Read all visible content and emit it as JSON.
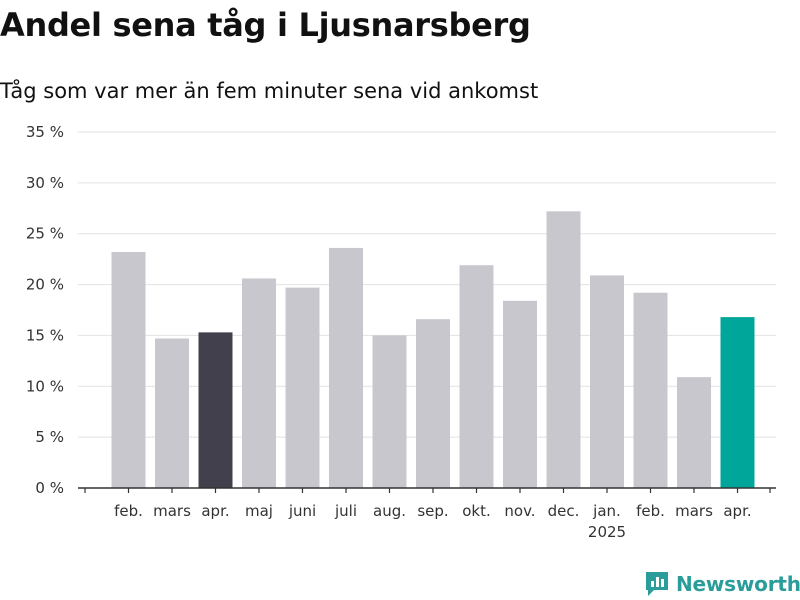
{
  "title": "Andel sena tåg i Ljusnarsberg",
  "subtitle": "Tåg som var mer än fem minuter sena vid ankomst",
  "brand": "Newsworthy",
  "colors": {
    "bar": "#c8c7ce",
    "previous_year": "#42404d",
    "highlight": "#00a69a",
    "grid": "#e2e2e2",
    "axis": "#333333",
    "brand": "#2a9d9a"
  },
  "chart_data": {
    "type": "bar",
    "categories": [
      "feb.",
      "mars",
      "apr.",
      "maj",
      "juni",
      "juli",
      "aug.",
      "sep.",
      "okt.",
      "nov.",
      "dec.",
      "jan.",
      "feb.",
      "mars",
      "apr."
    ],
    "year_label": "2025",
    "year_label_under": "jan.",
    "values": [
      23.2,
      14.7,
      15.3,
      20.6,
      19.7,
      23.6,
      15.0,
      16.6,
      21.9,
      18.4,
      27.2,
      20.9,
      19.2,
      10.9,
      16.8
    ],
    "highlight": [
      2,
      14
    ],
    "highlight_colors": [
      "previous_year",
      "highlight"
    ],
    "ylim": [
      0,
      35
    ],
    "yticks": [
      0,
      5,
      10,
      15,
      20,
      25,
      30,
      35
    ],
    "ytick_labels": [
      "0 %",
      "5 %",
      "10 %",
      "15 %",
      "20 %",
      "25 %",
      "30 %",
      "35 %"
    ],
    "grid": true,
    "xlabel": "",
    "ylabel": ""
  }
}
